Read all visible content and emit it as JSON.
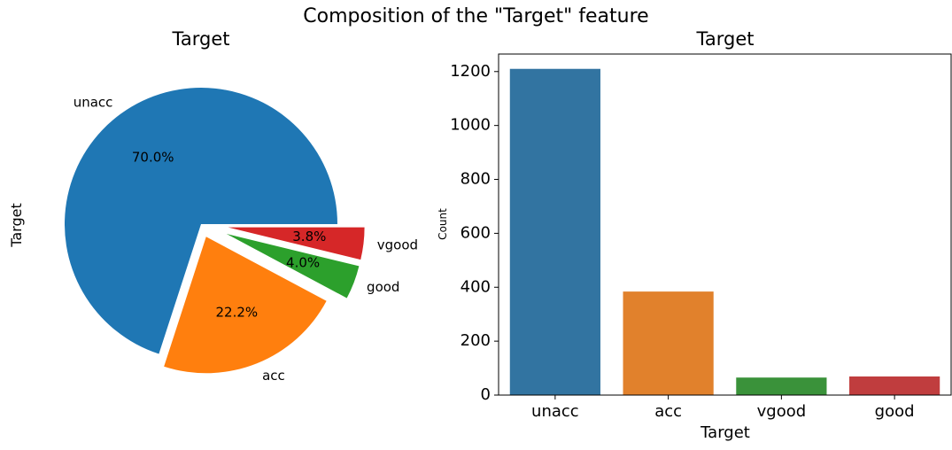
{
  "figure": {
    "suptitle": "Composition of the \"Target\" feature"
  },
  "chart_data": [
    {
      "type": "pie",
      "title": "Target",
      "ylabel": "Target",
      "series": [
        {
          "label": "unacc",
          "percent": 70.0,
          "pct_label": "70.0%",
          "color": "#1f77b4",
          "explode": 0.0
        },
        {
          "label": "acc",
          "percent": 22.2,
          "pct_label": "22.2%",
          "color": "#ff7f0e",
          "explode": 0.1
        },
        {
          "label": "good",
          "percent": 4.0,
          "pct_label": "4.0%",
          "color": "#2ca02c",
          "explode": 0.2
        },
        {
          "label": "vgood",
          "percent": 3.8,
          "pct_label": "3.8%",
          "color": "#d62728",
          "explode": 0.2
        }
      ]
    },
    {
      "type": "bar",
      "title": "Target",
      "xlabel": "Target",
      "ylabel": "Count",
      "categories": [
        "unacc",
        "acc",
        "vgood",
        "good"
      ],
      "values": [
        1210,
        384,
        65,
        69
      ],
      "colors": [
        "#3274a1",
        "#e1812c",
        "#3a923a",
        "#c03d3e"
      ],
      "ylim": [
        0,
        1265
      ],
      "yticks": [
        0,
        200,
        400,
        600,
        800,
        1000,
        1200
      ]
    }
  ]
}
